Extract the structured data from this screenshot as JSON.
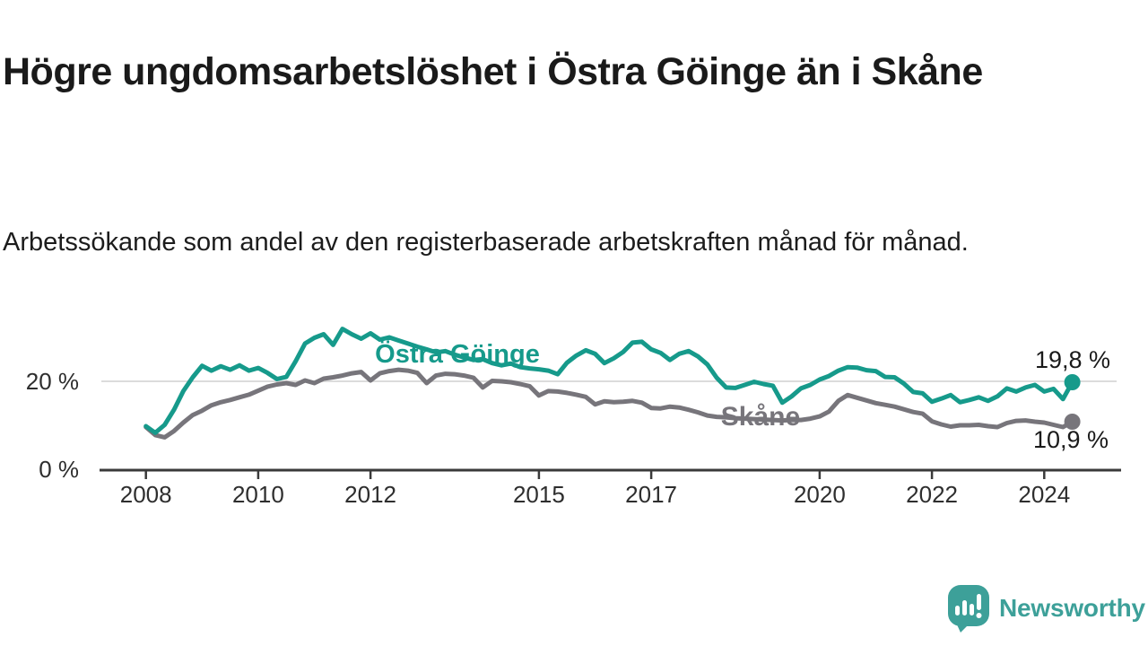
{
  "header": {
    "title": "Högre ungdomsarbetslöshet i Östra Göinge än i Skåne",
    "subtitle": "Arbetssökande som andel av den registerbaserade arbetskraften månad för månad."
  },
  "chart_data": {
    "type": "line",
    "x_range": [
      "2008-01",
      "2024-07"
    ],
    "step_months": 2,
    "unit": "%",
    "grid": "single horizontal gridline at 20 %",
    "x_ticks": [
      2008,
      2010,
      2012,
      2015,
      2017,
      2020,
      2022,
      2024
    ],
    "y_ticks": [
      {
        "value": 0,
        "label": "0 %"
      },
      {
        "value": 20,
        "label": "20 %"
      }
    ],
    "ylim": [
      0,
      34
    ],
    "series": [
      {
        "name": "Östra Göinge",
        "color": "#169a8b",
        "end_label": "19,8 %",
        "end_value": 19.8,
        "values": [
          9.9,
          8.4,
          10.2,
          13.6,
          17.8,
          20.9,
          23.5,
          22.4,
          23.4,
          22.6,
          23.6,
          22.4,
          23.0,
          21.9,
          20.5,
          21.0,
          24.5,
          28.5,
          29.8,
          30.6,
          28.2,
          31.8,
          30.6,
          29.6,
          30.8,
          29.4,
          29.9,
          29.2,
          28.5,
          27.8,
          27.2,
          26.5,
          26.8,
          26.0,
          25.4,
          24.8,
          25.0,
          24.1,
          23.6,
          24.0,
          23.2,
          22.9,
          22.7,
          22.4,
          21.6,
          24.2,
          25.8,
          27.0,
          26.2,
          24.1,
          25.2,
          26.6,
          28.7,
          28.9,
          27.2,
          26.4,
          24.8,
          26.2,
          26.8,
          25.6,
          23.8,
          20.8,
          18.6,
          18.5,
          19.2,
          19.9,
          19.4,
          19.0,
          15.2,
          16.6,
          18.4,
          19.2,
          20.4,
          21.2,
          22.4,
          23.2,
          23.1,
          22.5,
          22.3,
          21.0,
          20.9,
          19.5,
          17.6,
          17.3,
          15.4,
          16.1,
          16.9,
          15.3,
          15.8,
          16.4,
          15.6,
          16.6,
          18.4,
          17.7,
          18.6,
          19.2,
          17.7,
          18.3,
          16.0,
          19.8
        ]
      },
      {
        "name": "Skåne",
        "color": "#77757b",
        "end_label": "10,9 %",
        "end_value": 10.9,
        "values": [
          9.7,
          7.9,
          7.4,
          8.8,
          10.7,
          12.4,
          13.4,
          14.6,
          15.3,
          15.8,
          16.4,
          17.0,
          17.9,
          18.8,
          19.3,
          19.6,
          19.2,
          20.2,
          19.6,
          20.6,
          20.9,
          21.3,
          21.8,
          22.1,
          20.2,
          21.8,
          22.3,
          22.6,
          22.4,
          21.9,
          19.6,
          21.3,
          21.7,
          21.6,
          21.3,
          20.8,
          18.6,
          20.1,
          20.0,
          19.8,
          19.4,
          18.9,
          16.8,
          17.8,
          17.7,
          17.4,
          17.0,
          16.5,
          14.8,
          15.5,
          15.3,
          15.4,
          15.6,
          15.2,
          14.0,
          13.9,
          14.3,
          14.1,
          13.6,
          13.0,
          12.3,
          12.0,
          11.9,
          11.7,
          11.6,
          11.5,
          11.4,
          11.3,
          11.2,
          11.3,
          11.3,
          11.6,
          12.1,
          13.2,
          15.6,
          16.9,
          16.3,
          15.7,
          15.1,
          14.7,
          14.3,
          13.7,
          13.1,
          12.7,
          11.0,
          10.3,
          9.8,
          10.1,
          10.1,
          10.2,
          9.9,
          9.7,
          10.6,
          11.1,
          11.2,
          10.9,
          10.7,
          10.2,
          9.7,
          10.9
        ]
      }
    ]
  },
  "footer": {
    "brand": "Newsworthy",
    "brand_color": "#3da099"
  }
}
